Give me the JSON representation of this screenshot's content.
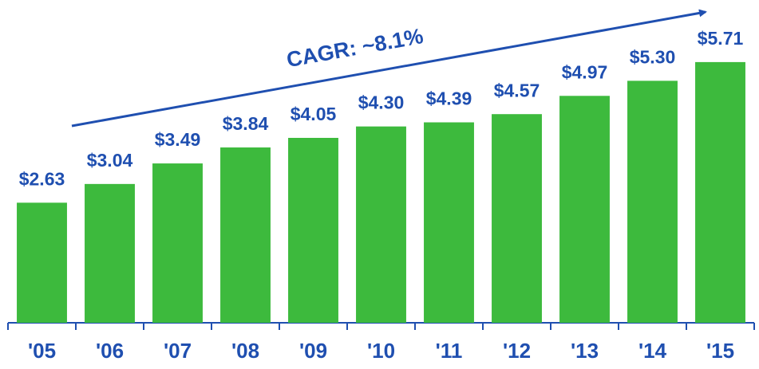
{
  "chart_data": {
    "type": "bar",
    "annotation": "CAGR: ~8.1%",
    "categories": [
      "'05",
      "'06",
      "'07",
      "'08",
      "'09",
      "'10",
      "'11",
      "'12",
      "'13",
      "'14",
      "'15"
    ],
    "values": [
      2.63,
      3.04,
      3.49,
      3.84,
      4.05,
      4.3,
      4.39,
      4.57,
      4.97,
      5.3,
      5.71
    ],
    "value_labels": [
      "$2.63",
      "$3.04",
      "$3.49",
      "$3.84",
      "$4.05",
      "$4.30",
      "$4.39",
      "$4.57",
      "$4.97",
      "$5.30",
      "$5.71"
    ],
    "color": "#3dba3d",
    "label_color": "#1f4fb0",
    "ylim": [
      0,
      7
    ]
  }
}
